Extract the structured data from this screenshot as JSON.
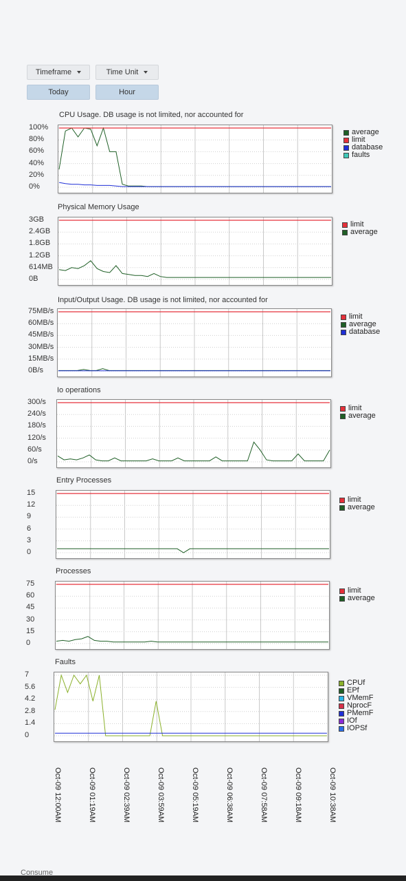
{
  "controls": {
    "timeframe_label": "Timeframe",
    "timeframe_value": "Today",
    "timeunit_label": "Time Unit",
    "timeunit_value": "Hour"
  },
  "x_labels": [
    "Oct-09 12:00AM",
    "Oct-09 01:19AM",
    "Oct-09 02:39AM",
    "Oct-09 03:59AM",
    "Oct-09 05:19AM",
    "Oct-09 06:38AM",
    "Oct-09 07:58AM",
    "Oct-09 09:18AM",
    "Oct-09 10:38AM"
  ],
  "bottom_text": "Consume",
  "colors": {
    "red": "#e5303a",
    "green": "#1f5f26",
    "blue": "#1f2fd6",
    "teal": "#40c8b8",
    "lime": "#8ab02a",
    "cyan": "#2ab6e8",
    "purple": "#8a2ad6",
    "medblue": "#2a6ee8",
    "darkred": "#d6304a"
  },
  "chart_data": [
    {
      "type": "line",
      "title": "CPU Usage. DB usage is not limited, nor accounted for",
      "y_ticks": [
        "100%",
        "80%",
        "60%",
        "40%",
        "20%",
        "0%"
      ],
      "ylim": [
        0,
        100
      ],
      "series": [
        {
          "name": "average",
          "color": "#1f5f26",
          "values": [
            30,
            95,
            100,
            85,
            100,
            98,
            70,
            100,
            60,
            60,
            5,
            2,
            2,
            2,
            1,
            1,
            1,
            1,
            1,
            1,
            1,
            1,
            1,
            1,
            1,
            1,
            1,
            1,
            1,
            1,
            1,
            1,
            1,
            1,
            1,
            1,
            1,
            1,
            1,
            1,
            1,
            1,
            1,
            1
          ]
        },
        {
          "name": "limit",
          "color": "#e5303a",
          "values": [
            100,
            100,
            100,
            100,
            100,
            100,
            100,
            100,
            100,
            100,
            100,
            100,
            100,
            100,
            100,
            100,
            100,
            100,
            100,
            100,
            100,
            100,
            100,
            100,
            100,
            100,
            100,
            100,
            100,
            100,
            100,
            100,
            100,
            100,
            100,
            100,
            100,
            100,
            100,
            100,
            100,
            100,
            100,
            100
          ]
        },
        {
          "name": "database",
          "color": "#1f2fd6",
          "values": [
            8,
            6,
            5,
            5,
            4,
            4,
            3,
            3,
            3,
            2,
            1,
            1,
            1,
            1,
            1,
            1,
            1,
            1,
            1,
            1,
            1,
            1,
            1,
            1,
            1,
            1,
            1,
            1,
            1,
            1,
            1,
            1,
            1,
            1,
            1,
            1,
            1,
            1,
            1,
            1,
            1,
            1,
            1,
            1
          ]
        },
        {
          "name": "faults",
          "color": "#40c8b8",
          "values": []
        }
      ]
    },
    {
      "type": "line",
      "title": "Physical Memory Usage",
      "y_ticks": [
        "3GB",
        "2.4GB",
        "1.8GB",
        "1.2GB",
        "614MB",
        "0B"
      ],
      "ylim": [
        0,
        3
      ],
      "series": [
        {
          "name": "limit",
          "color": "#e5303a",
          "values": [
            3,
            3,
            3,
            3,
            3,
            3,
            3,
            3,
            3,
            3,
            3,
            3,
            3,
            3,
            3,
            3,
            3,
            3,
            3,
            3,
            3,
            3,
            3,
            3,
            3,
            3,
            3,
            3,
            3,
            3,
            3,
            3,
            3,
            3,
            3,
            3,
            3,
            3,
            3,
            3,
            3,
            3,
            3,
            3
          ]
        },
        {
          "name": "average",
          "color": "#1f5f26",
          "values": [
            0.5,
            0.45,
            0.6,
            0.55,
            0.7,
            0.95,
            0.55,
            0.4,
            0.35,
            0.7,
            0.3,
            0.25,
            0.2,
            0.2,
            0.15,
            0.3,
            0.15,
            0.1,
            0.1,
            0.1,
            0.1,
            0.1,
            0.1,
            0.1,
            0.1,
            0.1,
            0.1,
            0.1,
            0.1,
            0.1,
            0.1,
            0.1,
            0.1,
            0.1,
            0.1,
            0.1,
            0.1,
            0.1,
            0.1,
            0.1,
            0.1,
            0.1,
            0.1,
            0.1
          ]
        }
      ]
    },
    {
      "type": "line",
      "title": "Input/Output Usage. DB usage is not limited, nor accounted for",
      "y_ticks": [
        "75MB/s",
        "60MB/s",
        "45MB/s",
        "30MB/s",
        "15MB/s",
        "0B/s"
      ],
      "ylim": [
        0,
        75
      ],
      "series": [
        {
          "name": "limit",
          "color": "#e5303a",
          "values": [
            75,
            75,
            75,
            75,
            75,
            75,
            75,
            75,
            75,
            75,
            75,
            75,
            75,
            75,
            75,
            75,
            75,
            75,
            75,
            75,
            75,
            75,
            75,
            75,
            75,
            75,
            75,
            75,
            75,
            75,
            75,
            75,
            75,
            75,
            75,
            75,
            75,
            75,
            75,
            75,
            75,
            75,
            75,
            75
          ]
        },
        {
          "name": "average",
          "color": "#1f5f26",
          "values": [
            0.5,
            0.5,
            0.5,
            0.5,
            2,
            0.5,
            0.5,
            3,
            0.5,
            0.5,
            0.5,
            0.5,
            0.5,
            0.5,
            0.5,
            0.5,
            0.5,
            0.5,
            0.5,
            0.5,
            0.5,
            0.5,
            0.5,
            0.5,
            0.5,
            0.5,
            0.5,
            0.5,
            0.5,
            0.5,
            0.5,
            0.5,
            0.5,
            0.5,
            0.5,
            0.5,
            0.5,
            0.5,
            0.5,
            0.5,
            0.5,
            0.5,
            0.5,
            0.5
          ]
        },
        {
          "name": "database",
          "color": "#1f2fd6",
          "values": [
            0.3,
            0.3,
            0.3,
            0.3,
            0.3,
            0.3,
            0.3,
            0.3,
            0.3,
            0.3,
            0.3,
            0.3,
            0.3,
            0.3,
            0.3,
            0.3,
            0.3,
            0.3,
            0.3,
            0.3,
            0.3,
            0.3,
            0.3,
            0.3,
            0.3,
            0.3,
            0.3,
            0.3,
            0.3,
            0.3,
            0.3,
            0.3,
            0.3,
            0.3,
            0.3,
            0.3,
            0.3,
            0.3,
            0.3,
            0.3,
            0.3,
            0.3,
            0.3,
            0.3
          ]
        }
      ]
    },
    {
      "type": "line",
      "title": "Io operations",
      "y_ticks": [
        "300/s",
        "240/s",
        "180/s",
        "120/s",
        "60/s",
        "0/s"
      ],
      "ylim": [
        0,
        300
      ],
      "series": [
        {
          "name": "limit",
          "color": "#e5303a",
          "values": [
            300,
            300,
            300,
            300,
            300,
            300,
            300,
            300,
            300,
            300,
            300,
            300,
            300,
            300,
            300,
            300,
            300,
            300,
            300,
            300,
            300,
            300,
            300,
            300,
            300,
            300,
            300,
            300,
            300,
            300,
            300,
            300,
            300,
            300,
            300,
            300,
            300,
            300,
            300,
            300,
            300,
            300,
            300,
            300
          ]
        },
        {
          "name": "average",
          "color": "#1f5f26",
          "values": [
            30,
            10,
            15,
            10,
            20,
            35,
            10,
            5,
            5,
            20,
            5,
            5,
            5,
            5,
            5,
            15,
            5,
            5,
            5,
            20,
            5,
            5,
            5,
            5,
            5,
            25,
            5,
            5,
            5,
            5,
            5,
            100,
            60,
            10,
            5,
            5,
            5,
            5,
            40,
            5,
            5,
            5,
            5,
            60
          ]
        }
      ]
    },
    {
      "type": "line",
      "title": "Entry Processes",
      "y_ticks": [
        "15",
        "12",
        "9",
        "6",
        "3",
        "0"
      ],
      "ylim": [
        0,
        15
      ],
      "series": [
        {
          "name": "limit",
          "color": "#e5303a",
          "values": [
            15,
            15,
            15,
            15,
            15,
            15,
            15,
            15,
            15,
            15,
            15,
            15,
            15,
            15,
            15,
            15,
            15,
            15,
            15,
            15,
            15,
            15,
            15,
            15,
            15,
            15,
            15,
            15,
            15,
            15,
            15,
            15,
            15,
            15,
            15,
            15,
            15,
            15,
            15,
            15,
            15,
            15,
            15,
            15
          ]
        },
        {
          "name": "average",
          "color": "#1f5f26",
          "values": [
            1,
            1,
            1,
            1,
            1,
            1,
            1,
            1,
            1,
            1,
            1,
            1,
            1,
            1,
            1,
            1,
            1,
            1,
            1,
            1,
            0,
            1,
            1,
            1,
            1,
            1,
            1,
            1,
            1,
            1,
            1,
            1,
            1,
            1,
            1,
            1,
            1,
            1,
            1,
            1,
            1,
            1,
            1,
            1
          ]
        }
      ]
    },
    {
      "type": "line",
      "title": "Processes",
      "y_ticks": [
        "75",
        "60",
        "45",
        "30",
        "15",
        "0"
      ],
      "ylim": [
        0,
        75
      ],
      "series": [
        {
          "name": "limit",
          "color": "#e5303a",
          "values": [
            75,
            75,
            75,
            75,
            75,
            75,
            75,
            75,
            75,
            75,
            75,
            75,
            75,
            75,
            75,
            75,
            75,
            75,
            75,
            75,
            75,
            75,
            75,
            75,
            75,
            75,
            75,
            75,
            75,
            75,
            75,
            75,
            75,
            75,
            75,
            75,
            75,
            75,
            75,
            75,
            75,
            75,
            75,
            75
          ]
        },
        {
          "name": "average",
          "color": "#1f5f26",
          "values": [
            3,
            4,
            3,
            5,
            6,
            9,
            4,
            3,
            3,
            2,
            2,
            2,
            2,
            2,
            2,
            3,
            2,
            2,
            2,
            2,
            2,
            2,
            2,
            2,
            2,
            2,
            2,
            2,
            2,
            2,
            2,
            2,
            2,
            2,
            2,
            2,
            2,
            2,
            2,
            2,
            2,
            2,
            2,
            2
          ]
        }
      ]
    },
    {
      "type": "line",
      "title": "Faults",
      "y_ticks": [
        "7",
        "5.6",
        "4.2",
        "2.8",
        "1.4",
        "0"
      ],
      "ylim": [
        0,
        7
      ],
      "series": [
        {
          "name": "CPUf",
          "color": "#8ab02a",
          "values": [
            3,
            7,
            5,
            7,
            6,
            7,
            4,
            7,
            0,
            0,
            0,
            0,
            0,
            0,
            0,
            0,
            4,
            0,
            0,
            0,
            0,
            0,
            0,
            0,
            0,
            0,
            0,
            0,
            0,
            0,
            0,
            0,
            0,
            0,
            0,
            0,
            0,
            0,
            0,
            0,
            0,
            0,
            0,
            0
          ]
        },
        {
          "name": "EPf",
          "color": "#1f5f26",
          "values": []
        },
        {
          "name": "VMemF",
          "color": "#2ab6e8",
          "values": []
        },
        {
          "name": "NprocF",
          "color": "#d6304a",
          "values": []
        },
        {
          "name": "PMemF",
          "color": "#1f2fd6",
          "values": [
            0.3,
            0.3,
            0.3,
            0.3,
            0.3,
            0.3,
            0.3,
            0.3,
            0.3,
            0.3,
            0.3,
            0.3,
            0.3,
            0.3,
            0.3,
            0.3,
            0.3,
            0.3,
            0.3,
            0.3,
            0.3,
            0.3,
            0.3,
            0.3,
            0.3,
            0.3,
            0.3,
            0.3,
            0.3,
            0.3,
            0.3,
            0.3,
            0.3,
            0.3,
            0.3,
            0.3,
            0.3,
            0.3,
            0.3,
            0.3,
            0.3,
            0.3,
            0.3,
            0.3
          ]
        },
        {
          "name": "IOf",
          "color": "#8a2ad6",
          "values": []
        },
        {
          "name": "IOPSf",
          "color": "#2a6ee8",
          "values": []
        }
      ]
    }
  ]
}
